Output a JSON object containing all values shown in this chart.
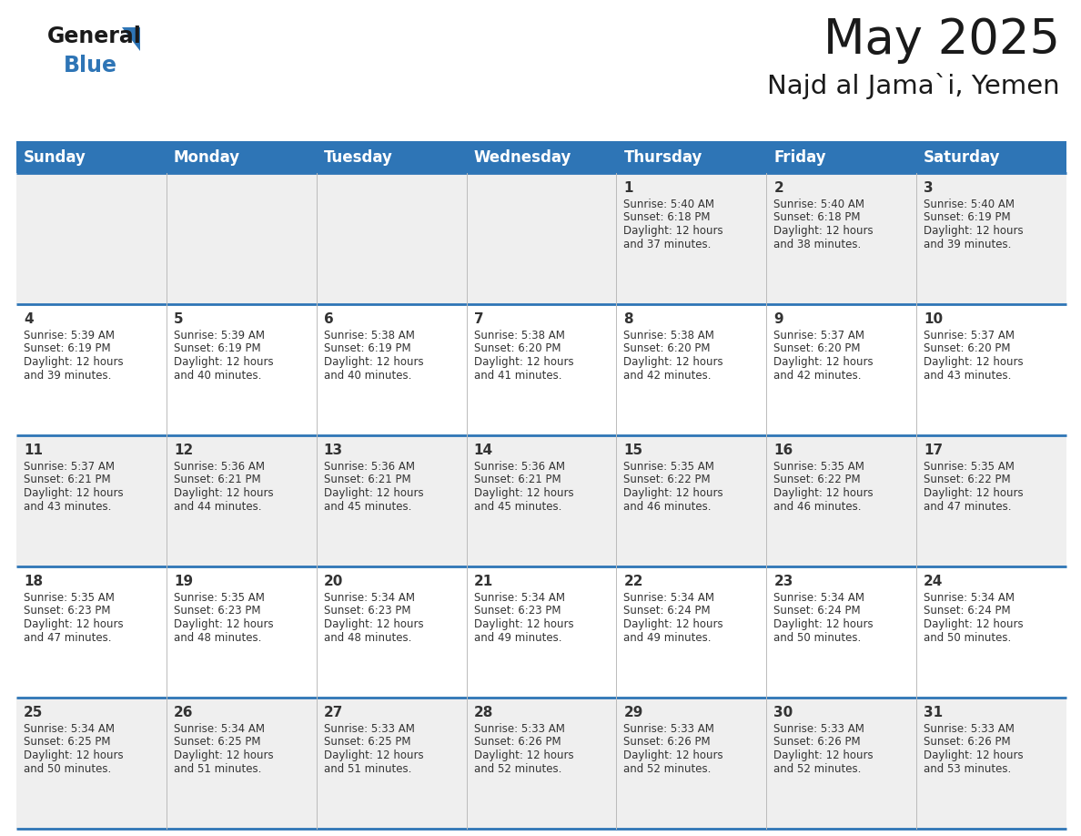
{
  "title": "May 2025",
  "subtitle": "Najd al Jama`i, Yemen",
  "header_color": "#2E75B6",
  "header_text_color": "#FFFFFF",
  "cell_bg_row0": "#EFEFEF",
  "cell_bg_row1": "#FFFFFF",
  "cell_bg_row2": "#EFEFEF",
  "cell_bg_row3": "#FFFFFF",
  "cell_bg_row4": "#EFEFEF",
  "border_color": "#2E75B6",
  "divider_color": "#AAAAAA",
  "day_names": [
    "Sunday",
    "Monday",
    "Tuesday",
    "Wednesday",
    "Thursday",
    "Friday",
    "Saturday"
  ],
  "days_data": [
    {
      "day": 1,
      "col": 4,
      "row": 0,
      "sunrise": "5:40 AM",
      "sunset": "6:18 PM",
      "daylight": "12 hours and 37 minutes."
    },
    {
      "day": 2,
      "col": 5,
      "row": 0,
      "sunrise": "5:40 AM",
      "sunset": "6:18 PM",
      "daylight": "12 hours and 38 minutes."
    },
    {
      "day": 3,
      "col": 6,
      "row": 0,
      "sunrise": "5:40 AM",
      "sunset": "6:19 PM",
      "daylight": "12 hours and 39 minutes."
    },
    {
      "day": 4,
      "col": 0,
      "row": 1,
      "sunrise": "5:39 AM",
      "sunset": "6:19 PM",
      "daylight": "12 hours and 39 minutes."
    },
    {
      "day": 5,
      "col": 1,
      "row": 1,
      "sunrise": "5:39 AM",
      "sunset": "6:19 PM",
      "daylight": "12 hours and 40 minutes."
    },
    {
      "day": 6,
      "col": 2,
      "row": 1,
      "sunrise": "5:38 AM",
      "sunset": "6:19 PM",
      "daylight": "12 hours and 40 minutes."
    },
    {
      "day": 7,
      "col": 3,
      "row": 1,
      "sunrise": "5:38 AM",
      "sunset": "6:20 PM",
      "daylight": "12 hours and 41 minutes."
    },
    {
      "day": 8,
      "col": 4,
      "row": 1,
      "sunrise": "5:38 AM",
      "sunset": "6:20 PM",
      "daylight": "12 hours and 42 minutes."
    },
    {
      "day": 9,
      "col": 5,
      "row": 1,
      "sunrise": "5:37 AM",
      "sunset": "6:20 PM",
      "daylight": "12 hours and 42 minutes."
    },
    {
      "day": 10,
      "col": 6,
      "row": 1,
      "sunrise": "5:37 AM",
      "sunset": "6:20 PM",
      "daylight": "12 hours and 43 minutes."
    },
    {
      "day": 11,
      "col": 0,
      "row": 2,
      "sunrise": "5:37 AM",
      "sunset": "6:21 PM",
      "daylight": "12 hours and 43 minutes."
    },
    {
      "day": 12,
      "col": 1,
      "row": 2,
      "sunrise": "5:36 AM",
      "sunset": "6:21 PM",
      "daylight": "12 hours and 44 minutes."
    },
    {
      "day": 13,
      "col": 2,
      "row": 2,
      "sunrise": "5:36 AM",
      "sunset": "6:21 PM",
      "daylight": "12 hours and 45 minutes."
    },
    {
      "day": 14,
      "col": 3,
      "row": 2,
      "sunrise": "5:36 AM",
      "sunset": "6:21 PM",
      "daylight": "12 hours and 45 minutes."
    },
    {
      "day": 15,
      "col": 4,
      "row": 2,
      "sunrise": "5:35 AM",
      "sunset": "6:22 PM",
      "daylight": "12 hours and 46 minutes."
    },
    {
      "day": 16,
      "col": 5,
      "row": 2,
      "sunrise": "5:35 AM",
      "sunset": "6:22 PM",
      "daylight": "12 hours and 46 minutes."
    },
    {
      "day": 17,
      "col": 6,
      "row": 2,
      "sunrise": "5:35 AM",
      "sunset": "6:22 PM",
      "daylight": "12 hours and 47 minutes."
    },
    {
      "day": 18,
      "col": 0,
      "row": 3,
      "sunrise": "5:35 AM",
      "sunset": "6:23 PM",
      "daylight": "12 hours and 47 minutes."
    },
    {
      "day": 19,
      "col": 1,
      "row": 3,
      "sunrise": "5:35 AM",
      "sunset": "6:23 PM",
      "daylight": "12 hours and 48 minutes."
    },
    {
      "day": 20,
      "col": 2,
      "row": 3,
      "sunrise": "5:34 AM",
      "sunset": "6:23 PM",
      "daylight": "12 hours and 48 minutes."
    },
    {
      "day": 21,
      "col": 3,
      "row": 3,
      "sunrise": "5:34 AM",
      "sunset": "6:23 PM",
      "daylight": "12 hours and 49 minutes."
    },
    {
      "day": 22,
      "col": 4,
      "row": 3,
      "sunrise": "5:34 AM",
      "sunset": "6:24 PM",
      "daylight": "12 hours and 49 minutes."
    },
    {
      "day": 23,
      "col": 5,
      "row": 3,
      "sunrise": "5:34 AM",
      "sunset": "6:24 PM",
      "daylight": "12 hours and 50 minutes."
    },
    {
      "day": 24,
      "col": 6,
      "row": 3,
      "sunrise": "5:34 AM",
      "sunset": "6:24 PM",
      "daylight": "12 hours and 50 minutes."
    },
    {
      "day": 25,
      "col": 0,
      "row": 4,
      "sunrise": "5:34 AM",
      "sunset": "6:25 PM",
      "daylight": "12 hours and 50 minutes."
    },
    {
      "day": 26,
      "col": 1,
      "row": 4,
      "sunrise": "5:34 AM",
      "sunset": "6:25 PM",
      "daylight": "12 hours and 51 minutes."
    },
    {
      "day": 27,
      "col": 2,
      "row": 4,
      "sunrise": "5:33 AM",
      "sunset": "6:25 PM",
      "daylight": "12 hours and 51 minutes."
    },
    {
      "day": 28,
      "col": 3,
      "row": 4,
      "sunrise": "5:33 AM",
      "sunset": "6:26 PM",
      "daylight": "12 hours and 52 minutes."
    },
    {
      "day": 29,
      "col": 4,
      "row": 4,
      "sunrise": "5:33 AM",
      "sunset": "6:26 PM",
      "daylight": "12 hours and 52 minutes."
    },
    {
      "day": 30,
      "col": 5,
      "row": 4,
      "sunrise": "5:33 AM",
      "sunset": "6:26 PM",
      "daylight": "12 hours and 52 minutes."
    },
    {
      "day": 31,
      "col": 6,
      "row": 4,
      "sunrise": "5:33 AM",
      "sunset": "6:26 PM",
      "daylight": "12 hours and 53 minutes."
    }
  ],
  "num_rows": 5,
  "num_cols": 7,
  "logo_color_general": "#1a1a1a",
  "logo_color_blue": "#2E75B6",
  "title_fontsize": 38,
  "subtitle_fontsize": 21,
  "header_fontsize": 12,
  "day_num_fontsize": 11,
  "cell_text_fontsize": 8.5
}
